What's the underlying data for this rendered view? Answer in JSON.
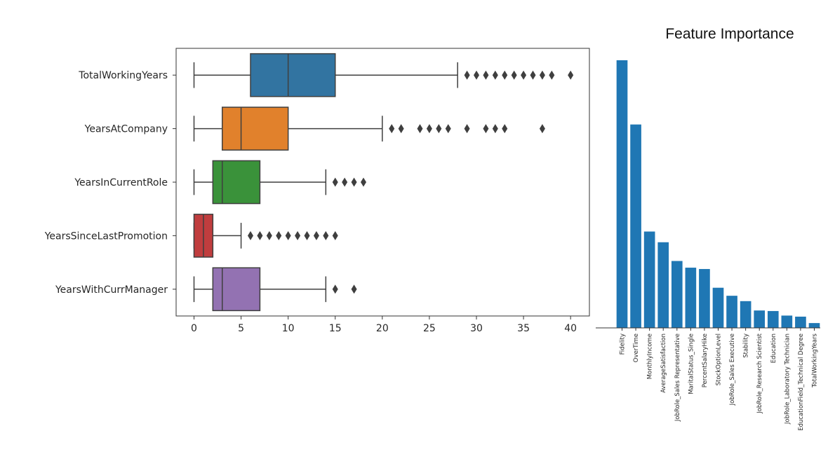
{
  "chart_data": [
    {
      "type": "box",
      "orientation": "horizontal",
      "title": "",
      "xlabel": "",
      "ylabel": "",
      "xlim": [
        -1.9,
        42
      ],
      "xticks": [
        0,
        5,
        10,
        15,
        20,
        25,
        30,
        35,
        40
      ],
      "xtick_labels": [
        "0",
        "5",
        "10",
        "15",
        "20",
        "25",
        "30",
        "35",
        "40"
      ],
      "grid": false,
      "categories": [
        "TotalWorkingYears",
        "YearsAtCompany",
        "YearsInCurrentRole",
        "YearsSinceLastPromotion",
        "YearsWithCurrManager"
      ],
      "series": [
        {
          "name": "TotalWorkingYears",
          "color": "#3274a1",
          "whisker_low": 0,
          "q1": 6,
          "median": 10,
          "q3": 15,
          "whisker_high": 28,
          "outliers": [
            29,
            30,
            31,
            32,
            33,
            34,
            35,
            36,
            37,
            38,
            40
          ]
        },
        {
          "name": "YearsAtCompany",
          "color": "#e1812c",
          "whisker_low": 0,
          "q1": 3,
          "median": 5,
          "q3": 10,
          "whisker_high": 20,
          "outliers": [
            21,
            22,
            24,
            25,
            26,
            27,
            29,
            31,
            32,
            33,
            37
          ]
        },
        {
          "name": "YearsInCurrentRole",
          "color": "#3a923a",
          "whisker_low": 0,
          "q1": 2,
          "median": 3,
          "q3": 7,
          "whisker_high": 14,
          "outliers": [
            15,
            16,
            17,
            18
          ]
        },
        {
          "name": "YearsSinceLastPromotion",
          "color": "#c03d3e",
          "whisker_low": 0,
          "q1": 0,
          "median": 1,
          "q3": 2,
          "whisker_high": 5,
          "outliers": [
            6,
            7,
            8,
            9,
            10,
            11,
            12,
            13,
            14,
            15
          ]
        },
        {
          "name": "YearsWithCurrManager",
          "color": "#9372b2",
          "whisker_low": 0,
          "q1": 2,
          "median": 3,
          "q3": 7,
          "whisker_high": 14,
          "outliers": [
            15,
            17
          ]
        }
      ]
    },
    {
      "type": "bar",
      "title": "Feature Importance",
      "xlabel": "",
      "ylabel": "",
      "bar_color": "#1f77b4",
      "y_axis_visible": false,
      "ylim": [
        0,
        1.0
      ],
      "categories": [
        "Fidelity",
        "OverTime",
        "MonthlyIncome",
        "AverageSatisfaction",
        "JobRole_Sales Representative",
        "MaritalStatus_Single",
        "PercentSalaryHike",
        "StockOptionLevel",
        "JobRole_Sales Executive",
        "Stability",
        "JobRole_Research Scientist",
        "Education",
        "JobRole_Laboratory Technician",
        "EducationField_Technical Degree",
        "TotalWorkingYears"
      ],
      "values": [
        1.0,
        0.76,
        0.36,
        0.32,
        0.25,
        0.225,
        0.22,
        0.15,
        0.12,
        0.1,
        0.065,
        0.063,
        0.046,
        0.042,
        0.018
      ]
    }
  ]
}
